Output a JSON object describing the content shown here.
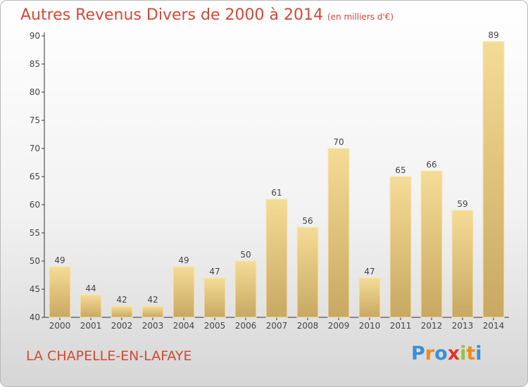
{
  "chart_data": {
    "type": "bar",
    "title": "Autres Revenus Divers de 2000 à 2014",
    "subtitle": "(en milliers d'€)",
    "categories": [
      "2000",
      "2001",
      "2002",
      "2003",
      "2004",
      "2005",
      "2006",
      "2007",
      "2008",
      "2009",
      "2010",
      "2011",
      "2012",
      "2013",
      "2014"
    ],
    "values": [
      49,
      44,
      42,
      42,
      49,
      47,
      50,
      61,
      56,
      70,
      47,
      65,
      66,
      59,
      89
    ],
    "ylim": [
      40,
      90
    ],
    "yticks": [
      40,
      45,
      50,
      55,
      60,
      65,
      70,
      75,
      80,
      85,
      90
    ],
    "xlabel": "",
    "ylabel": "",
    "grid": false,
    "colors": {
      "bar_light": "#f5dc96",
      "bar_dark": "#c8a862",
      "text": "#d04a36",
      "axis": "#333333"
    }
  },
  "footer": {
    "location": "LA CHAPELLE-EN-LAFAYE"
  },
  "logo": {
    "text": "Proxiti",
    "letter_colors": [
      "#3a8fd6",
      "#f08a1c",
      "#3a8fd6",
      "#e5322d",
      "#8cc63f",
      "#f08a1c",
      "#3a8fd6"
    ]
  }
}
